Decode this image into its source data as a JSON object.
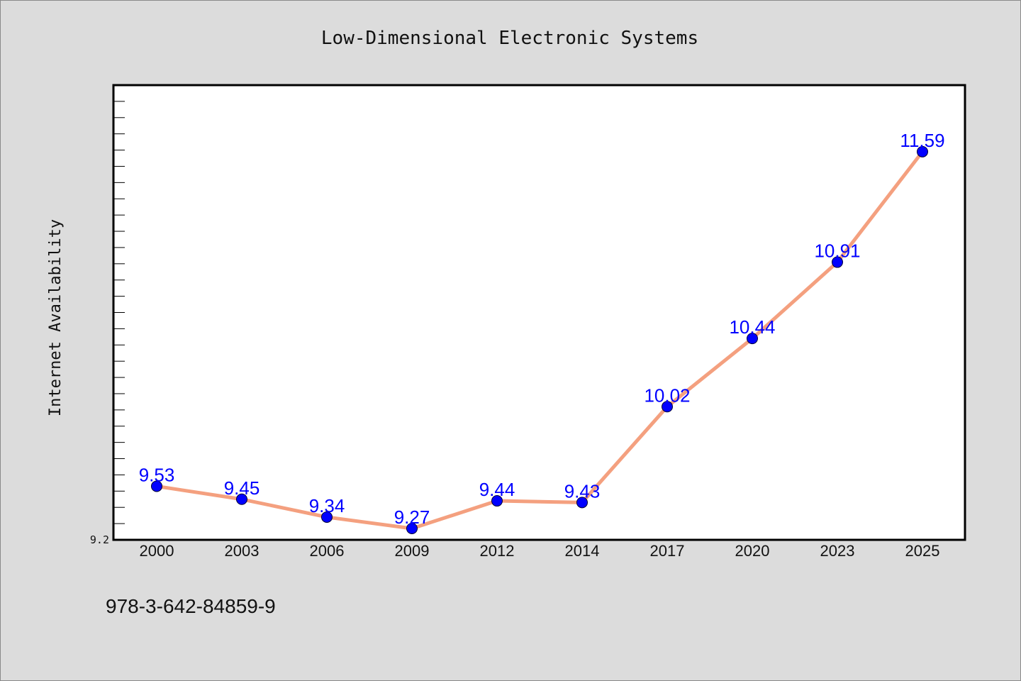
{
  "chart_data": {
    "type": "line",
    "title": "Low-Dimensional Electronic Systems",
    "xlabel": "",
    "ylabel": "Internet Availability",
    "categories": [
      "2000",
      "2003",
      "2006",
      "2009",
      "2012",
      "2014",
      "2017",
      "2020",
      "2023",
      "2025"
    ],
    "series": [
      {
        "values": [
          9.53,
          9.45,
          9.34,
          9.27,
          9.44,
          9.43,
          10.02,
          10.44,
          10.91,
          11.59
        ],
        "line_color": "#f4a07f",
        "marker_color": "#0000ff"
      }
    ],
    "ylim": [
      9.2,
      12.0
    ],
    "y_tick_labels": [
      "9.2"
    ],
    "grid": false,
    "legend": "none"
  },
  "footer": {
    "text": "978-3-642-84859-9"
  }
}
